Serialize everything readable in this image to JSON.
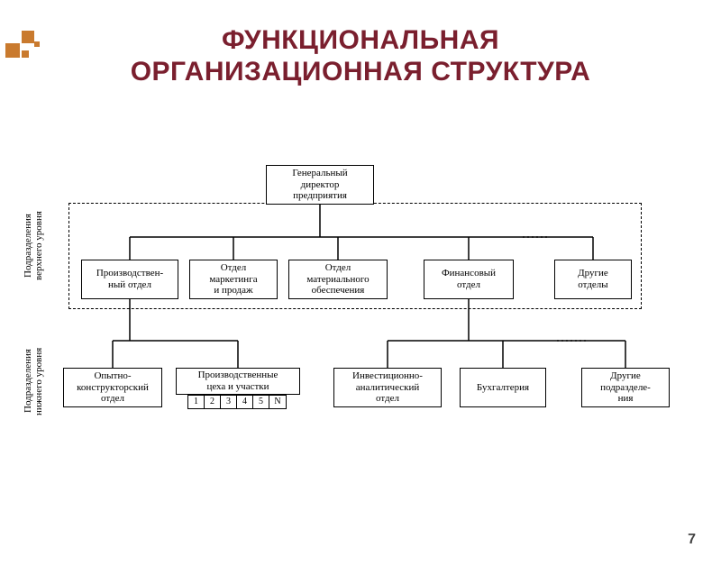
{
  "title": {
    "line1": "ФУНКЦИОНАЛЬНАЯ",
    "line2": "ОРГАНИЗАЦИОННАЯ СТРУКТУРА"
  },
  "page_number": "7",
  "decoration": {
    "color": "#c97a2e"
  },
  "labels": {
    "upper": "Подразделения\nверхнего уровня",
    "lower": "Подразделения\nнижнего уровня"
  },
  "nodes": {
    "root": {
      "text": "Генеральный\nдиректор\nпредприятия"
    },
    "u1": {
      "text": "Производствен-\nный отдел"
    },
    "u2": {
      "text": "Отдел\nмаркетинга\nи продаж"
    },
    "u3": {
      "text": "Отдел\nматериального\nобеспечения"
    },
    "u4": {
      "text": "Финансовый\nотдел"
    },
    "u5": {
      "text": "Другие\nотделы"
    },
    "l1": {
      "text": "Опытно-\nконструкторский\nотдел"
    },
    "l2": {
      "text": "Производственные\nцеха и участки"
    },
    "l3": {
      "text": "Инвестиционно-\nаналитический\nотдел"
    },
    "l4": {
      "text": "Бухгалтерия"
    },
    "l5": {
      "text": "Другие\nподразделе-\nния"
    }
  },
  "cells": [
    "1",
    "2",
    "3",
    "4",
    "5",
    "N"
  ],
  "colors": {
    "title": "#7a1f2e",
    "line": "#000000",
    "background": "#ffffff"
  },
  "structure_type": "tree"
}
